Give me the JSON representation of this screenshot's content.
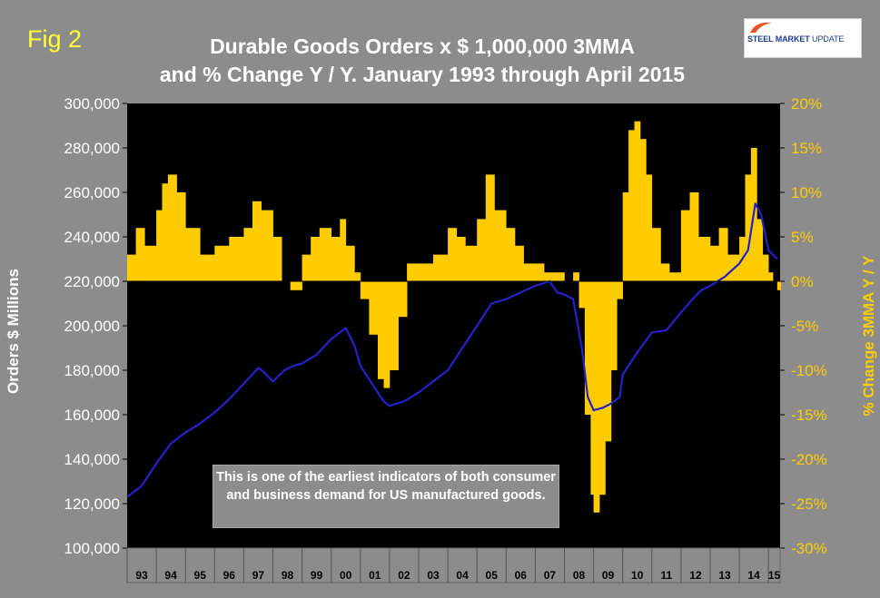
{
  "figure_label": "Fig 2",
  "title_line1": "Durable Goods Orders x $ 1,000,000 3MMA",
  "title_line2": "and % Change Y / Y. January 1993 through April 2015",
  "logo": {
    "part1": "STEEL MARKET",
    "part2": "UPDATE",
    "accent_color": "#e8531f"
  },
  "note": "This is one of the earliest indicators of both consumer and business demand for US manufactured goods.",
  "colors": {
    "background": "#8c8c8c",
    "plot": "#000000",
    "line": "#2222cc",
    "bar": "#ffcc00",
    "left_axis_text": "#ffffff",
    "right_axis_text": "#ffcc00"
  },
  "chart_data": {
    "type": "bar+line",
    "title": "Durable Goods Orders x $ 1,000,000 3MMA and % Change Y / Y. January 1993 through April 2015",
    "xlabel": "",
    "ylabel_left": "Orders $ Millions",
    "ylabel_right": "% Change 3MMA Y / Y",
    "ylim_left": [
      100000,
      300000
    ],
    "ylim_right": [
      -30,
      20
    ],
    "y_ticks_left": [
      "300,000",
      "280,000",
      "260,000",
      "240,000",
      "220,000",
      "200,000",
      "180,000",
      "160,000",
      "140,000",
      "120,000",
      "100,000"
    ],
    "y_ticks_right": [
      "20%",
      "15%",
      "10%",
      "5%",
      "0%",
      "-5%",
      "-10%",
      "-15%",
      "-20%",
      "-25%",
      "-30%"
    ],
    "categories": [
      "93",
      "94",
      "95",
      "96",
      "97",
      "98",
      "99",
      "00",
      "01",
      "02",
      "03",
      "04",
      "05",
      "06",
      "07",
      "08",
      "09",
      "10",
      "11",
      "12",
      "13",
      "14",
      "15"
    ],
    "series": [
      {
        "name": "Durable Goods Orders 3MMA ($ millions)",
        "axis": "left",
        "kind": "line",
        "x": [
          1993.0,
          1993.5,
          1994.0,
          1994.5,
          1995.0,
          1995.5,
          1996.0,
          1996.5,
          1997.0,
          1997.5,
          1997.7,
          1998.0,
          1998.4,
          1998.7,
          1999.0,
          1999.5,
          2000.0,
          2000.5,
          2000.8,
          2001.0,
          2001.5,
          2001.8,
          2002.0,
          2002.5,
          2003.0,
          2003.5,
          2004.0,
          2004.5,
          2005.0,
          2005.5,
          2006.0,
          2006.5,
          2007.0,
          2007.5,
          2007.75,
          2008.0,
          2008.3,
          2008.6,
          2008.8,
          2009.0,
          2009.3,
          2009.6,
          2009.9,
          2010.0,
          2010.5,
          2011.0,
          2011.5,
          2012.0,
          2012.4,
          2012.7,
          2013.0,
          2013.5,
          2014.0,
          2014.3,
          2014.55,
          2014.75,
          2015.0,
          2015.3
        ],
        "values": [
          123000,
          128000,
          138000,
          147000,
          152000,
          156000,
          161000,
          167000,
          174000,
          181000,
          179000,
          175000,
          180000,
          182000,
          183000,
          187000,
          194000,
          199000,
          191000,
          182000,
          172000,
          166000,
          164000,
          166000,
          170000,
          175000,
          180000,
          190000,
          200000,
          210000,
          212000,
          215000,
          218000,
          220000,
          215000,
          214000,
          212000,
          190000,
          168000,
          162000,
          163000,
          165000,
          168000,
          178000,
          188000,
          197000,
          198000,
          206000,
          212000,
          216000,
          218000,
          222000,
          228000,
          234000,
          255000,
          250000,
          234000,
          230000
        ]
      },
      {
        "name": "% Change Y/Y 3MMA",
        "axis": "right",
        "kind": "bar",
        "x": [
          1993.0,
          1993.3,
          1993.6,
          1994.0,
          1994.2,
          1994.4,
          1994.7,
          1995.0,
          1995.5,
          1996.0,
          1996.5,
          1997.0,
          1997.3,
          1997.6,
          1998.0,
          1998.3,
          1998.6,
          1999.0,
          1999.3,
          1999.6,
          2000.0,
          2000.3,
          2000.5,
          2000.8,
          2001.0,
          2001.3,
          2001.6,
          2001.8,
          2002.0,
          2002.3,
          2002.6,
          2003.0,
          2003.5,
          2004.0,
          2004.3,
          2004.6,
          2005.0,
          2005.3,
          2005.6,
          2006.0,
          2006.3,
          2006.6,
          2007.0,
          2007.3,
          2007.6,
          2008.0,
          2008.3,
          2008.5,
          2008.7,
          2008.9,
          2009.0,
          2009.2,
          2009.4,
          2009.6,
          2009.8,
          2010.0,
          2010.2,
          2010.4,
          2010.6,
          2010.8,
          2011.0,
          2011.3,
          2011.6,
          2012.0,
          2012.3,
          2012.6,
          2013.0,
          2013.3,
          2013.6,
          2014.0,
          2014.2,
          2014.4,
          2014.6,
          2014.8,
          2015.0,
          2015.15,
          2015.3
        ],
        "values": [
          3,
          6,
          4,
          8,
          11,
          12,
          10,
          6,
          3,
          4,
          5,
          6,
          9,
          8,
          5,
          0,
          -1,
          3,
          5,
          6,
          5,
          7,
          4,
          1,
          -2,
          -6,
          -11,
          -12,
          -10,
          -4,
          2,
          2,
          3,
          6,
          5,
          4,
          7,
          12,
          8,
          6,
          4,
          2,
          2,
          1,
          1,
          0,
          1,
          -3,
          -15,
          -24,
          -26,
          -24,
          -18,
          -10,
          -2,
          10,
          17,
          18,
          16,
          12,
          6,
          2,
          1,
          8,
          10,
          5,
          4,
          6,
          3,
          5,
          12,
          15,
          7,
          3,
          1,
          0,
          -1
        ]
      }
    ]
  }
}
